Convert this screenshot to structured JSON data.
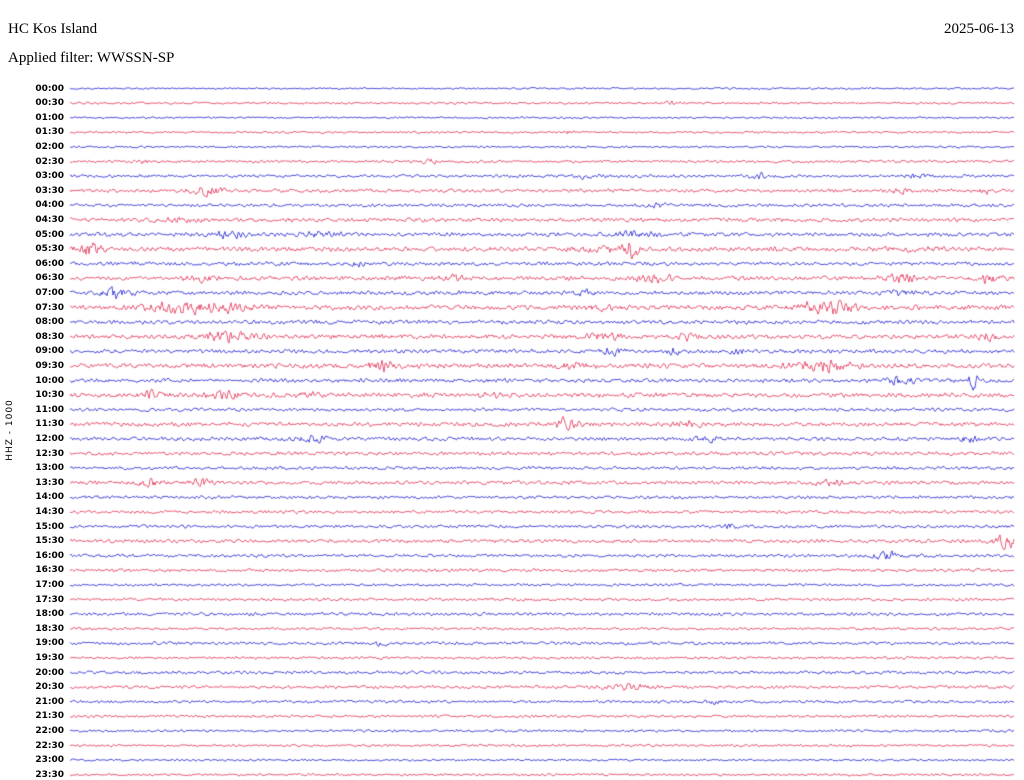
{
  "header": {
    "station": "HC Kos Island",
    "date": "2025-06-13",
    "filter_label": "Applied filter: WWSSN-SP",
    "axis_label": "HHZ - 1000"
  },
  "colors": {
    "blue": "#0000cc",
    "red": "#dc143c"
  },
  "chart_data": {
    "type": "line",
    "subtype": "helicorder-seismogram",
    "title": "HC Kos Island",
    "date": "2025-06-13",
    "filter": "WWSSN-SP",
    "channel_label": "HHZ - 1000",
    "minutes_per_row": 30,
    "row_color_order": [
      "blue",
      "red"
    ],
    "events_format": "[position_fraction_of_row, gaussian_width_fraction, peak_amplitude_px]",
    "rows": [
      {
        "time": "00:00",
        "color": "blue",
        "amp": 0.7,
        "events": []
      },
      {
        "time": "00:30",
        "color": "red",
        "amp": 0.8,
        "events": [
          [
            0.635,
            0.004,
            2.5
          ]
        ]
      },
      {
        "time": "01:00",
        "color": "blue",
        "amp": 0.7,
        "events": []
      },
      {
        "time": "01:30",
        "color": "red",
        "amp": 0.8,
        "events": [
          [
            0.53,
            0.003,
            1.5
          ]
        ]
      },
      {
        "time": "02:00",
        "color": "blue",
        "amp": 0.8,
        "events": []
      },
      {
        "time": "02:30",
        "color": "red",
        "amp": 1.0,
        "events": [
          [
            0.08,
            0.004,
            1.2
          ],
          [
            0.38,
            0.006,
            2.0
          ]
        ]
      },
      {
        "time": "03:00",
        "color": "blue",
        "amp": 1.1,
        "events": [
          [
            0.55,
            0.01,
            1.5
          ],
          [
            0.73,
            0.008,
            2.0
          ],
          [
            0.9,
            0.01,
            1.2
          ]
        ]
      },
      {
        "time": "03:30",
        "color": "red",
        "amp": 1.3,
        "events": [
          [
            0.145,
            0.012,
            3.5
          ],
          [
            0.88,
            0.008,
            2.0
          ],
          [
            0.97,
            0.006,
            1.5
          ]
        ]
      },
      {
        "time": "04:00",
        "color": "blue",
        "amp": 1.2,
        "events": [
          [
            0.62,
            0.008,
            1.5
          ]
        ]
      },
      {
        "time": "04:30",
        "color": "red",
        "amp": 1.5,
        "events": [
          [
            0.12,
            0.02,
            1.0
          ]
        ]
      },
      {
        "time": "05:00",
        "color": "blue",
        "amp": 1.5,
        "events": [
          [
            0.17,
            0.01,
            2.5
          ],
          [
            0.26,
            0.02,
            1.5
          ],
          [
            0.6,
            0.015,
            2.0
          ]
        ]
      },
      {
        "time": "05:30",
        "color": "red",
        "amp": 1.7,
        "events": [
          [
            0.02,
            0.01,
            4.0
          ],
          [
            0.56,
            0.02,
            1.5
          ],
          [
            0.595,
            0.006,
            6.5
          ],
          [
            0.9,
            0.02,
            1.0
          ]
        ]
      },
      {
        "time": "06:00",
        "color": "blue",
        "amp": 1.4,
        "events": [
          [
            0.305,
            0.006,
            2.5
          ]
        ]
      },
      {
        "time": "06:30",
        "color": "red",
        "amp": 1.6,
        "events": [
          [
            0.14,
            0.01,
            2.5
          ],
          [
            0.405,
            0.01,
            2.0
          ],
          [
            0.62,
            0.012,
            3.0
          ],
          [
            0.88,
            0.012,
            2.5
          ],
          [
            0.975,
            0.01,
            3.0
          ]
        ]
      },
      {
        "time": "07:00",
        "color": "blue",
        "amp": 1.5,
        "events": [
          [
            0.05,
            0.012,
            3.5
          ],
          [
            0.545,
            0.006,
            2.5
          ],
          [
            0.88,
            0.008,
            2.0
          ]
        ]
      },
      {
        "time": "07:30",
        "color": "red",
        "amp": 1.8,
        "events": [
          [
            0.12,
            0.025,
            3.5
          ],
          [
            0.17,
            0.02,
            2.5
          ],
          [
            0.56,
            0.01,
            1.5
          ],
          [
            0.8,
            0.018,
            5.0
          ]
        ]
      },
      {
        "time": "08:00",
        "color": "blue",
        "amp": 1.5,
        "events": []
      },
      {
        "time": "08:30",
        "color": "red",
        "amp": 1.7,
        "events": [
          [
            0.17,
            0.02,
            3.0
          ],
          [
            0.565,
            0.01,
            2.5
          ],
          [
            0.655,
            0.008,
            2.0
          ],
          [
            0.97,
            0.008,
            2.5
          ]
        ]
      },
      {
        "time": "09:00",
        "color": "blue",
        "amp": 1.5,
        "events": [
          [
            0.575,
            0.008,
            2.5
          ],
          [
            0.64,
            0.006,
            2.0
          ],
          [
            0.71,
            0.006,
            1.8
          ]
        ]
      },
      {
        "time": "09:30",
        "color": "red",
        "amp": 1.8,
        "events": [
          [
            0.33,
            0.01,
            3.5
          ],
          [
            0.53,
            0.01,
            1.5
          ],
          [
            0.8,
            0.02,
            4.0
          ]
        ]
      },
      {
        "time": "10:00",
        "color": "blue",
        "amp": 1.5,
        "events": [
          [
            0.88,
            0.012,
            2.5
          ],
          [
            0.957,
            0.003,
            7.0
          ]
        ]
      },
      {
        "time": "10:30",
        "color": "red",
        "amp": 1.7,
        "events": [
          [
            0.085,
            0.008,
            3.5
          ],
          [
            0.165,
            0.012,
            2.0
          ],
          [
            0.25,
            0.01,
            1.5
          ],
          [
            0.45,
            0.01,
            1.5
          ]
        ]
      },
      {
        "time": "11:00",
        "color": "blue",
        "amp": 1.3,
        "events": []
      },
      {
        "time": "11:30",
        "color": "red",
        "amp": 1.6,
        "events": [
          [
            0.525,
            0.008,
            4.5
          ],
          [
            0.655,
            0.008,
            2.0
          ]
        ]
      },
      {
        "time": "12:00",
        "color": "blue",
        "amp": 1.4,
        "events": [
          [
            0.26,
            0.015,
            1.8
          ],
          [
            0.675,
            0.008,
            2.8
          ],
          [
            0.95,
            0.008,
            2.5
          ]
        ]
      },
      {
        "time": "12:30",
        "color": "red",
        "amp": 1.4,
        "events": []
      },
      {
        "time": "13:00",
        "color": "blue",
        "amp": 1.2,
        "events": []
      },
      {
        "time": "13:30",
        "color": "red",
        "amp": 1.4,
        "events": [
          [
            0.085,
            0.008,
            2.5
          ],
          [
            0.14,
            0.008,
            2.2
          ],
          [
            0.8,
            0.01,
            2.0
          ]
        ]
      },
      {
        "time": "14:00",
        "color": "blue",
        "amp": 1.2,
        "events": []
      },
      {
        "time": "14:30",
        "color": "red",
        "amp": 1.2,
        "events": []
      },
      {
        "time": "15:00",
        "color": "blue",
        "amp": 1.2,
        "events": [
          [
            0.7,
            0.005,
            2.0
          ]
        ]
      },
      {
        "time": "15:30",
        "color": "red",
        "amp": 1.4,
        "events": [
          [
            0.99,
            0.008,
            5.0
          ]
        ]
      },
      {
        "time": "16:00",
        "color": "blue",
        "amp": 1.2,
        "events": [
          [
            0.865,
            0.01,
            3.0
          ]
        ]
      },
      {
        "time": "16:30",
        "color": "red",
        "amp": 1.2,
        "events": []
      },
      {
        "time": "17:00",
        "color": "blue",
        "amp": 1.0,
        "events": []
      },
      {
        "time": "17:30",
        "color": "red",
        "amp": 1.1,
        "events": []
      },
      {
        "time": "18:00",
        "color": "blue",
        "amp": 1.2,
        "events": []
      },
      {
        "time": "18:30",
        "color": "red",
        "amp": 1.0,
        "events": []
      },
      {
        "time": "19:00",
        "color": "blue",
        "amp": 1.2,
        "events": [
          [
            0.33,
            0.006,
            1.2
          ]
        ]
      },
      {
        "time": "19:30",
        "color": "red",
        "amp": 1.0,
        "events": []
      },
      {
        "time": "20:00",
        "color": "blue",
        "amp": 1.2,
        "events": []
      },
      {
        "time": "20:30",
        "color": "red",
        "amp": 1.2,
        "events": [
          [
            0.59,
            0.015,
            2.0
          ]
        ]
      },
      {
        "time": "21:00",
        "color": "blue",
        "amp": 1.1,
        "events": [
          [
            0.68,
            0.006,
            1.8
          ]
        ]
      },
      {
        "time": "21:30",
        "color": "red",
        "amp": 1.0,
        "events": []
      },
      {
        "time": "22:00",
        "color": "blue",
        "amp": 0.9,
        "events": []
      },
      {
        "time": "22:30",
        "color": "red",
        "amp": 0.9,
        "events": []
      },
      {
        "time": "23:00",
        "color": "blue",
        "amp": 0.8,
        "events": []
      },
      {
        "time": "23:30",
        "color": "red",
        "amp": 0.9,
        "events": []
      }
    ]
  }
}
